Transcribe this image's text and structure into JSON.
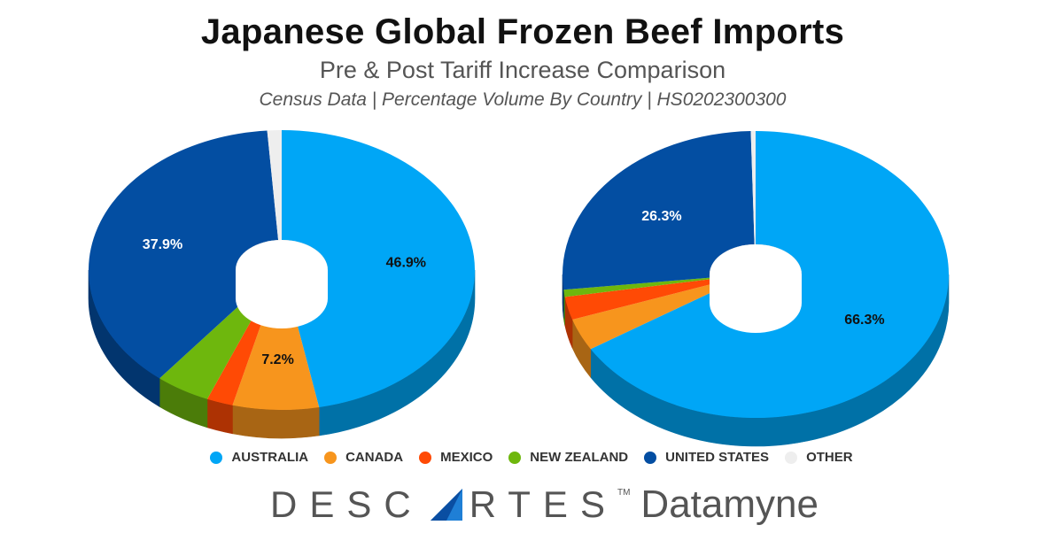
{
  "title": "Japanese Global Frozen Beef Imports",
  "subtitle": "Pre & Post Tariff Increase Comparison",
  "caption": "Census Data | Percentage Volume By Country | HS0202300300",
  "colors": {
    "AUSTRALIA": "#00a6f6",
    "CANADA": "#f7951d",
    "MEXICO": "#ff4a05",
    "NEW ZEALAND": "#6eb70d",
    "UNITED STATES": "#034ea2",
    "OTHER": "#eeeeee"
  },
  "chart_data": [
    {
      "type": "pie",
      "categories": [
        "AUSTRALIA",
        "CANADA",
        "MEXICO",
        "NEW ZEALAND",
        "UNITED STATES",
        "OTHER"
      ],
      "values": [
        46.9,
        7.2,
        2.2,
        4.6,
        37.9,
        1.2
      ],
      "data_labels": [
        "46.9%",
        "7.2%",
        "",
        "",
        "37.9%",
        ""
      ]
    },
    {
      "type": "pie",
      "categories": [
        "AUSTRALIA",
        "CANADA",
        "MEXICO",
        "NEW ZEALAND",
        "UNITED STATES",
        "OTHER"
      ],
      "values": [
        66.3,
        3.6,
        2.6,
        0.8,
        26.3,
        0.4
      ],
      "data_labels": [
        "66.3%",
        "",
        "",
        "",
        "26.3%",
        ""
      ]
    }
  ],
  "legend": [
    "AUSTRALIA",
    "CANADA",
    "MEXICO",
    "NEW ZEALAND",
    "UNITED STATES",
    "OTHER"
  ],
  "brand": {
    "left": "DESC",
    "right": "RTES",
    "tm": "TM",
    "product": "Datamyne"
  }
}
